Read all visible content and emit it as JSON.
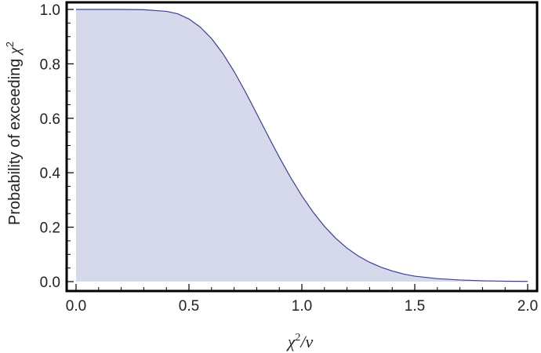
{
  "chart_data": {
    "type": "area",
    "title": "",
    "xlabel": {
      "symbol": "χ",
      "sup": "2",
      "rest": "/ν"
    },
    "ylabel": {
      "prefix": "Probability of exceeding ",
      "symbol": "χ",
      "sup": "2"
    },
    "xlim": [
      0,
      2.0
    ],
    "ylim": [
      0,
      1.0
    ],
    "x_ticks": [
      0.0,
      0.5,
      1.0,
      1.5,
      2.0
    ],
    "x_tick_labels": [
      "0.0",
      "0.5",
      "1.0",
      "1.5",
      "2.0"
    ],
    "y_ticks": [
      0.0,
      0.2,
      0.4,
      0.6,
      0.8,
      1.0
    ],
    "y_tick_labels": [
      "0.0",
      "0.2",
      "0.4",
      "0.6",
      "0.8",
      "1.0"
    ],
    "grid": false,
    "series": [
      {
        "x": [
          0.0,
          0.1,
          0.2,
          0.3,
          0.4,
          0.45,
          0.5,
          0.55,
          0.6,
          0.65,
          0.7,
          0.75,
          0.8,
          0.85,
          0.9,
          0.95,
          1.0,
          1.05,
          1.1,
          1.15,
          1.2,
          1.25,
          1.3,
          1.35,
          1.4,
          1.45,
          1.5,
          1.6,
          1.7,
          1.8,
          1.9,
          2.0
        ],
        "y": [
          1.0,
          1.0,
          1.0,
          0.999,
          0.993,
          0.984,
          0.965,
          0.935,
          0.893,
          0.838,
          0.772,
          0.697,
          0.617,
          0.536,
          0.457,
          0.383,
          0.315,
          0.255,
          0.203,
          0.159,
          0.123,
          0.094,
          0.071,
          0.053,
          0.039,
          0.028,
          0.02,
          0.011,
          0.006,
          0.003,
          0.0015,
          0.0008
        ]
      }
    ],
    "colors": {
      "fill": "#d6d8eb",
      "line": "#3c3d9c",
      "frame": "#000000"
    }
  }
}
